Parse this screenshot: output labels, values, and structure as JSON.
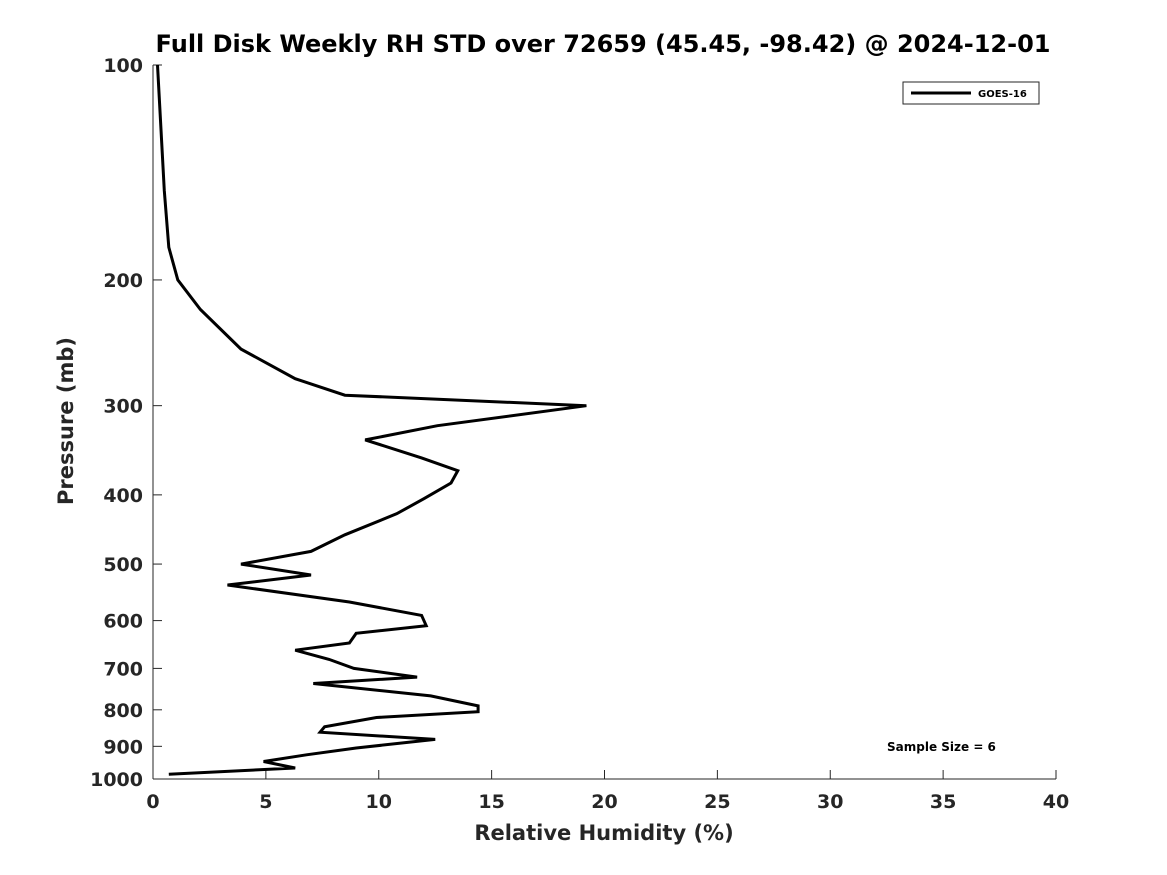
{
  "chart_data": {
    "type": "line",
    "title": "Full Disk Weekly RH STD over 72659 (45.45, -98.42) @ 2024-12-01",
    "xlabel": "Relative Humidity (%)",
    "ylabel": "Pressure (mb)",
    "xlim": [
      0,
      40
    ],
    "ylim": [
      100,
      1000
    ],
    "yscale": "log",
    "y_reversed": true,
    "grid": false,
    "legend_position": "top-right",
    "x_ticks": [
      "0",
      "5",
      "10",
      "15",
      "20",
      "25",
      "30",
      "35",
      "40"
    ],
    "y_ticks": [
      "100",
      "200",
      "300",
      "400",
      "500",
      "600",
      "700",
      "800",
      "900",
      "1000"
    ],
    "series": [
      {
        "name": "GOES-16",
        "color": "#000000",
        "points": [
          [
            0.2,
            100
          ],
          [
            0.5,
            150
          ],
          [
            0.7,
            180
          ],
          [
            1.1,
            200
          ],
          [
            2.1,
            220
          ],
          [
            3.9,
            250
          ],
          [
            6.3,
            275
          ],
          [
            8.5,
            290
          ],
          [
            19.2,
            300
          ],
          [
            12.6,
            320
          ],
          [
            9.4,
            335
          ],
          [
            11.9,
            355
          ],
          [
            13.5,
            370
          ],
          [
            13.2,
            385
          ],
          [
            12.0,
            405
          ],
          [
            10.8,
            425
          ],
          [
            8.5,
            455
          ],
          [
            7.0,
            480
          ],
          [
            3.9,
            500
          ],
          [
            7.0,
            518
          ],
          [
            3.3,
            535
          ],
          [
            8.7,
            565
          ],
          [
            11.9,
            590
          ],
          [
            12.1,
            610
          ],
          [
            9.0,
            625
          ],
          [
            8.7,
            645
          ],
          [
            6.3,
            660
          ],
          [
            7.8,
            680
          ],
          [
            8.9,
            700
          ],
          [
            11.7,
            720
          ],
          [
            7.1,
            735
          ],
          [
            12.3,
            765
          ],
          [
            14.4,
            790
          ],
          [
            14.4,
            805
          ],
          [
            9.9,
            820
          ],
          [
            7.6,
            845
          ],
          [
            7.4,
            860
          ],
          [
            12.5,
            880
          ],
          [
            9.0,
            905
          ],
          [
            6.8,
            925
          ],
          [
            4.9,
            945
          ],
          [
            6.3,
            965
          ],
          [
            0.7,
            985
          ]
        ]
      }
    ],
    "annotations": [
      "Sample Size = 6"
    ]
  }
}
